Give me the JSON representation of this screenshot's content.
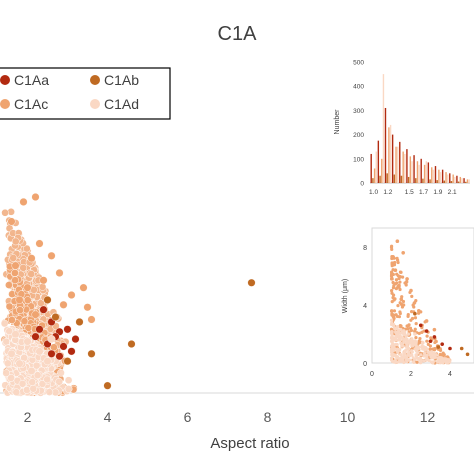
{
  "chart_data": [
    {
      "type": "scatter",
      "title": "C1A",
      "xlabel": "Aspect ratio",
      "ylabel": "",
      "xlim": [
        1.5,
        14
      ],
      "x_ticks": [
        2,
        4,
        6,
        8,
        10,
        12
      ],
      "legend": {
        "placement": "top-left"
      },
      "series": [
        {
          "name": "C1Aa",
          "color": "#b22a10",
          "points": [
            [
              2.4,
              3.4
            ],
            [
              2.6,
              2.9
            ],
            [
              2.8,
              2.5
            ],
            [
              3.0,
              2.6
            ],
            [
              2.7,
              2.3
            ],
            [
              2.5,
              2.0
            ],
            [
              3.2,
              2.2
            ],
            [
              2.9,
              1.9
            ],
            [
              3.1,
              1.7
            ],
            [
              2.6,
              1.6
            ],
            [
              2.3,
              2.6
            ],
            [
              2.2,
              2.3
            ],
            [
              2.8,
              1.5
            ]
          ]
        },
        {
          "name": "C1Ab",
          "color": "#bf6a22",
          "points": [
            [
              7.6,
              4.5
            ],
            [
              4.6,
              2.0
            ],
            [
              4.0,
              0.3
            ],
            [
              3.6,
              1.6
            ],
            [
              3.3,
              2.9
            ],
            [
              3.0,
              1.3
            ],
            [
              2.5,
              3.8
            ],
            [
              2.7,
              3.1
            ]
          ]
        },
        {
          "name": "C1Ac",
          "color": "#efa470",
          "points": [
            [
              2.2,
              8.0
            ],
            [
              1.9,
              7.8
            ],
            [
              1.6,
              7.0
            ],
            [
              2.3,
              6.1
            ],
            [
              2.6,
              5.6
            ],
            [
              2.1,
              5.5
            ],
            [
              1.7,
              5.2
            ],
            [
              2.8,
              4.9
            ],
            [
              2.4,
              4.6
            ],
            [
              3.4,
              4.3
            ],
            [
              3.1,
              4.0
            ],
            [
              2.0,
              4.3
            ],
            [
              2.9,
              3.6
            ],
            [
              3.5,
              3.5
            ],
            [
              3.6,
              3.0
            ],
            [
              2.2,
              3.2
            ],
            [
              1.8,
              3.8
            ]
          ]
        },
        {
          "name": "C1Ad",
          "color": "#fad8c4",
          "points": [
            [
              1.7,
              2.4
            ],
            [
              2.0,
              2.1
            ],
            [
              2.3,
              1.7
            ],
            [
              1.8,
              1.2
            ],
            [
              2.1,
              0.9
            ],
            [
              2.5,
              1.3
            ],
            [
              1.6,
              1.6
            ],
            [
              2.6,
              2.2
            ]
          ]
        }
      ]
    },
    {
      "type": "bar",
      "title": "",
      "xlabel": "",
      "ylabel": "Number",
      "ylim": [
        0,
        500
      ],
      "y_ticks": [
        0,
        100,
        200,
        300,
        400,
        500
      ],
      "categories": [
        "1.0",
        "1.1",
        "1.2",
        "1.3",
        "1.4",
        "1.5",
        "1.6",
        "1.7",
        "1.8",
        "1.9",
        "2.0",
        "2.1",
        "2.2",
        "2.3"
      ],
      "tick_labels": [
        "1.0",
        "1.2",
        "1.5",
        "1.7",
        "1.9",
        "2.1"
      ],
      "series": [
        {
          "name": "C1Aa",
          "color": "#b22a10",
          "values": [
            120,
            175,
            310,
            200,
            170,
            140,
            115,
            100,
            85,
            70,
            55,
            40,
            30,
            20
          ]
        },
        {
          "name": "C1Ab",
          "color": "#bf6a22",
          "values": [
            20,
            30,
            40,
            35,
            30,
            25,
            20,
            18,
            15,
            12,
            10,
            8,
            6,
            5
          ]
        },
        {
          "name": "C1Ac",
          "color": "#efa470",
          "values": [
            60,
            100,
            230,
            150,
            130,
            110,
            90,
            75,
            65,
            55,
            45,
            35,
            25,
            15
          ]
        },
        {
          "name": "C1Ad",
          "color": "#fad8c4",
          "values": [
            130,
            450,
            240,
            150,
            120,
            90,
            75,
            90,
            55,
            45,
            35,
            25,
            20,
            15
          ]
        }
      ]
    },
    {
      "type": "scatter",
      "title": "",
      "xlabel": "",
      "ylabel": "Width (μm)",
      "xlim": [
        0,
        5.5
      ],
      "ylim": [
        0,
        9
      ],
      "x_ticks": [
        0,
        2,
        4
      ],
      "y_ticks": [
        0,
        4,
        8
      ],
      "series": [
        {
          "name": "C1Aa",
          "color": "#b22a10",
          "points": [
            [
              2.8,
              2.2
            ],
            [
              3.2,
              1.8
            ],
            [
              3.6,
              1.3
            ],
            [
              2.5,
              2.6
            ],
            [
              4.0,
              1.0
            ],
            [
              3.0,
              1.5
            ]
          ]
        },
        {
          "name": "C1Ab",
          "color": "#bf6a22",
          "points": [
            [
              4.6,
              1.0
            ],
            [
              4.9,
              0.6
            ],
            [
              3.4,
              1.1
            ],
            [
              2.2,
              3.4
            ]
          ]
        },
        {
          "name": "C1Ac",
          "color": "#efa470",
          "points": [
            [
              1.3,
              8.4
            ],
            [
              1.6,
              7.6
            ],
            [
              1.2,
              6.4
            ],
            [
              1.8,
              5.8
            ],
            [
              2.0,
              5.0
            ],
            [
              1.5,
              4.4
            ],
            [
              2.4,
              3.6
            ],
            [
              2.8,
              2.9
            ],
            [
              3.2,
              2.3
            ],
            [
              1.1,
              3.2
            ]
          ]
        },
        {
          "name": "C1Ad",
          "color": "#fad8c4",
          "points": [
            [
              1.4,
              1.6
            ],
            [
              1.8,
              1.2
            ],
            [
              2.2,
              2.0
            ],
            [
              1.2,
              2.4
            ],
            [
              2.6,
              1.4
            ]
          ]
        }
      ]
    }
  ]
}
